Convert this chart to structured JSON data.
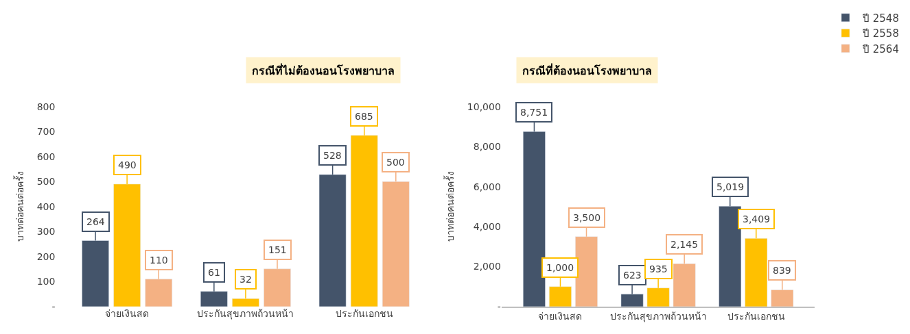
{
  "chart_data": [
    {
      "type": "bar",
      "title": "กรณีที่ไม่ต้องนอนโรงพยาบาล",
      "ylabel": "บาทต่อคนต่อครั้ง",
      "categories": [
        "จ่ายเงินสด",
        "ประกันสุขภาพถ้วนหน้า",
        "ประกันเอกชน"
      ],
      "series": [
        {
          "color": "#44546a",
          "values": [
            264,
            61,
            528
          ],
          "value_labels": [
            "264",
            "61",
            "528"
          ]
        },
        {
          "color": "#ffc000",
          "values": [
            490,
            32,
            685
          ],
          "value_labels": [
            "490",
            "32",
            "685"
          ]
        },
        {
          "color": "#f4b183",
          "values": [
            110,
            151,
            500
          ],
          "value_labels": [
            "110",
            "151",
            "500"
          ]
        }
      ],
      "ylim": [
        0,
        800
      ],
      "yticks": [
        {
          "value": 0,
          "label": "-"
        },
        100,
        200,
        300,
        400,
        500,
        600,
        700,
        800
      ]
    },
    {
      "type": "bar",
      "title": "กรณีที่ต้องนอนโรงพยาบาล",
      "ylabel": "บาทต่อคนต่อครั้ง",
      "categories": [
        "จ่ายเงินสด",
        "ประกันสุขภาพถ้วนหน้า",
        "ประกันเอกชน"
      ],
      "series": [
        {
          "name": "ปี 2548",
          "color": "#44546a",
          "values": [
            8751,
            623,
            5019
          ],
          "value_labels": [
            "8,751",
            "623",
            "5,019"
          ]
        },
        {
          "name": "ปี 2558",
          "color": "#ffc000",
          "values": [
            1000,
            935,
            3409
          ],
          "value_labels": [
            "1,000",
            "935",
            "3,409"
          ]
        },
        {
          "name": "ปี 2564",
          "color": "#f4b183",
          "values": [
            3500,
            2145,
            839
          ],
          "value_labels": [
            "3,500",
            "2,145",
            "839"
          ]
        }
      ],
      "ylim": [
        0,
        10000
      ],
      "yticks": [
        {
          "value": 0,
          "label": "-"
        },
        {
          "value": 2000,
          "label": "2,000"
        },
        {
          "value": 4000,
          "label": "4,000"
        },
        {
          "value": 6000,
          "label": "6,000"
        },
        {
          "value": 8000,
          "label": "8,000"
        },
        {
          "value": 10000,
          "label": "10,000"
        }
      ],
      "legend": "top right"
    }
  ]
}
